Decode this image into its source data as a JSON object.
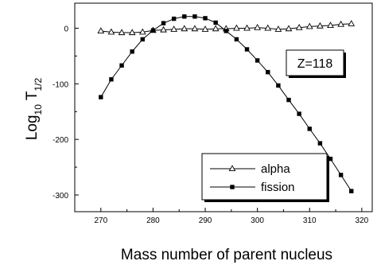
{
  "chart_data": {
    "type": "line",
    "xlabel": "Mass number of parent nucleus",
    "ylabel_main": "Log",
    "ylabel_sub": "10",
    "ylabel_tail": " T",
    "ylabel_tail_sub": "1/2",
    "xlim": [
      265,
      322
    ],
    "ylim": [
      -330,
      45
    ],
    "xticks": [
      270,
      280,
      290,
      300,
      310,
      320
    ],
    "yticks": [
      0,
      -100,
      -200,
      -300
    ],
    "annotation": "Z=118",
    "legend_position": "lower-right",
    "series": [
      {
        "name": "alpha",
        "marker": "open-triangle",
        "x": [
          270,
          272,
          274,
          276,
          278,
          280,
          282,
          284,
          286,
          288,
          290,
          292,
          294,
          296,
          298,
          300,
          302,
          304,
          306,
          308,
          310,
          312,
          314,
          316,
          318
        ],
        "y": [
          -5,
          -7,
          -8,
          -8,
          -7,
          -4,
          -3,
          -2,
          -1,
          -1,
          -2,
          -1,
          -1,
          0,
          0,
          1,
          0,
          -2,
          -1,
          1,
          3,
          4,
          5,
          7,
          8
        ]
      },
      {
        "name": "fission",
        "marker": "filled-square",
        "x": [
          270,
          272,
          274,
          276,
          278,
          280,
          282,
          284,
          286,
          288,
          290,
          292,
          294,
          296,
          298,
          300,
          302,
          304,
          306,
          308,
          310,
          312,
          314,
          316,
          318
        ],
        "y": [
          -124,
          -92,
          -67,
          -42,
          -20,
          -4,
          9,
          17,
          21,
          21,
          18,
          10,
          -5,
          -20,
          -38,
          -58,
          -79,
          -103,
          -129,
          -154,
          -181,
          -207,
          -235,
          -264,
          -293
        ]
      }
    ]
  }
}
